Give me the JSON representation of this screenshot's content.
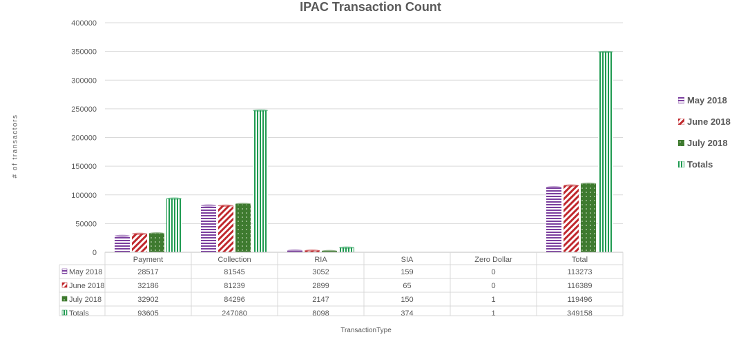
{
  "chart_data": {
    "type": "bar",
    "title": "IPAC Transaction  Count",
    "xlabel": "TransactionType",
    "ylabel": "# of transactors",
    "ylim": [
      0,
      400000
    ],
    "yticks": [
      "0",
      "50000",
      "100000",
      "150000",
      "200000",
      "250000",
      "300000",
      "350000",
      "400000"
    ],
    "grid": true,
    "legend_position": "right",
    "categories": [
      "Payment",
      "Collection",
      "RIA",
      "SIA",
      "Zero Dollar",
      "Total"
    ],
    "series": [
      {
        "name": "May 2018",
        "values": [
          28517,
          81545,
          3052,
          159,
          0,
          113273
        ],
        "labels": [
          "28517",
          "81545",
          "3052",
          "159",
          "0",
          "113273"
        ],
        "color": "#7b3f9e",
        "pattern": "horizontal-stripes"
      },
      {
        "name": "June 2018",
        "values": [
          32186,
          81239,
          2899,
          65,
          0,
          116389
        ],
        "labels": [
          "32186",
          "81239",
          "2899",
          "65",
          "0",
          "116389"
        ],
        "color": "#c0282d",
        "pattern": "diagonal-stripes"
      },
      {
        "name": "July 2018",
        "values": [
          32902,
          84296,
          2147,
          150,
          1,
          119496
        ],
        "labels": [
          "32902",
          "84296",
          "2147",
          "150",
          "1",
          "119496"
        ],
        "color": "#3e7a2f",
        "pattern": "dots"
      },
      {
        "name": "Totals",
        "values": [
          93605,
          247080,
          8098,
          374,
          1,
          349158
        ],
        "labels": [
          "93605",
          "247080",
          "8098",
          "374",
          "1",
          "349158"
        ],
        "color": "#1e9a50",
        "pattern": "vertical-stripes"
      }
    ]
  }
}
